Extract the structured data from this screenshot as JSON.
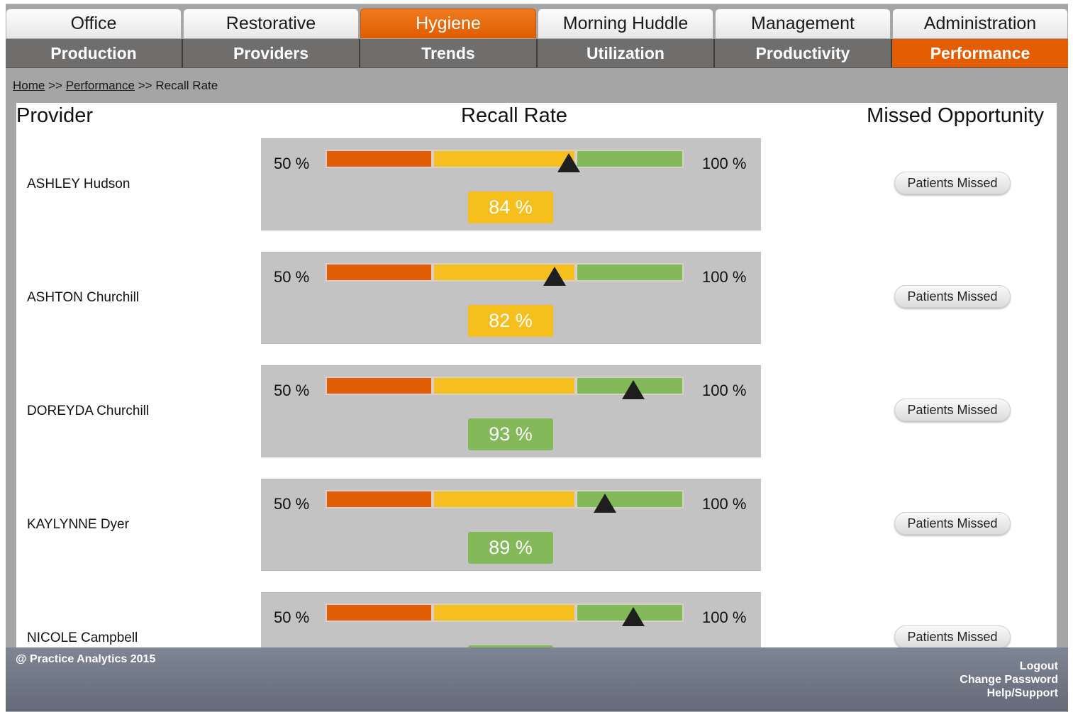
{
  "top_tabs": [
    {
      "label": "Office",
      "active": false
    },
    {
      "label": "Restorative",
      "active": false
    },
    {
      "label": "Hygiene",
      "active": true
    },
    {
      "label": "Morning Huddle",
      "active": false
    },
    {
      "label": "Management",
      "active": false
    },
    {
      "label": "Administration",
      "active": false
    }
  ],
  "sub_tabs": [
    {
      "label": "Production",
      "active": false
    },
    {
      "label": "Providers",
      "active": false
    },
    {
      "label": "Trends",
      "active": false
    },
    {
      "label": "Utilization",
      "active": false
    },
    {
      "label": "Productivity",
      "active": false
    },
    {
      "label": "Performance",
      "active": true
    }
  ],
  "breadcrumb": {
    "home": "Home",
    "sep1": ">>",
    "performance": "Performance",
    "sep2": ">>",
    "current": "Recall Rate"
  },
  "headers": {
    "provider": "Provider",
    "recall": "Recall Rate",
    "missed": "Missed Opportunity"
  },
  "gauge_scale": {
    "min_label": "50 %",
    "max_label": "100 %",
    "min": 50,
    "max": 100
  },
  "providers": [
    {
      "name": "ASHLEY Hudson",
      "rate": 84,
      "rate_label": "84 %",
      "status": "yellow",
      "button": "Patients Missed"
    },
    {
      "name": "ASHTON Churchill",
      "rate": 82,
      "rate_label": "82 %",
      "status": "yellow",
      "button": "Patients Missed"
    },
    {
      "name": "DOREYDA Churchill",
      "rate": 93,
      "rate_label": "93 %",
      "status": "green",
      "button": "Patients Missed"
    },
    {
      "name": "KAYLYNNE Dyer",
      "rate": 89,
      "rate_label": "89 %",
      "status": "green",
      "button": "Patients Missed"
    },
    {
      "name": "NICOLE Campbell",
      "rate": 93,
      "rate_label": "",
      "status": "green",
      "button": "Patients Missed"
    }
  ],
  "colors": {
    "accent": "#e55d03",
    "low": "#e15c04",
    "mid": "#f5c01d",
    "high": "#84b95a"
  },
  "footer": {
    "copyright": "@ Practice Analytics 2015",
    "logout": "Logout",
    "change_password": "Change Password",
    "help": "Help/Support"
  }
}
